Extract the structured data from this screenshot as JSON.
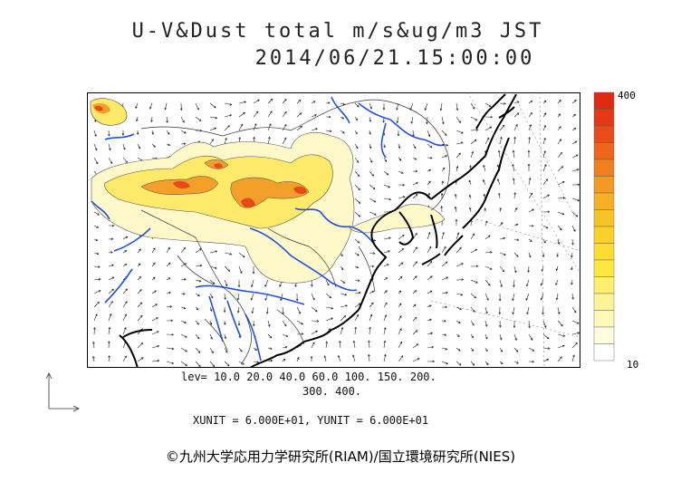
{
  "title_line1": "U-V&Dust total m/s&ug/m3 JST",
  "title_line2": "2014/06/21.15:00:00",
  "legend": {
    "max_label": "400",
    "min_label": "10",
    "colors": [
      "#ffffff",
      "#fffce0",
      "#fff8b8",
      "#fff39a",
      "#ffee70",
      "#ffe640",
      "#fcdc30",
      "#fad02a",
      "#f7c428",
      "#f5b025",
      "#f39a22",
      "#f0801f",
      "#ec661c",
      "#e84c18",
      "#e33a15",
      "#dd2a12"
    ]
  },
  "levels_line1": "lev= 10.0 20.0 40.0 60.0 100. 150. 200.",
  "levels_line2": "300. 400.",
  "units_text": "XUNIT = 6.000E+01, YUNIT = 6.000E+01",
  "credit": "©九州大学応用力学研究所(RIAM)/国立環境研究所(NIES)",
  "colors": {
    "coast": "#000000",
    "rivers": "#1e50e6",
    "dust_light": "#fff8c8",
    "dust_mid": "#fde96a",
    "dust_high": "#f3a02a",
    "dust_peak": "#e64a16"
  }
}
